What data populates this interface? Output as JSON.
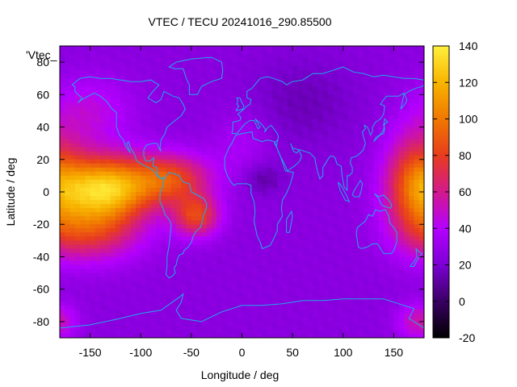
{
  "chart_data": {
    "type": "heatmap",
    "title": "VTEC / TECU 20241016_290.85500",
    "xlabel": "Longitude / deg",
    "ylabel": "Latitude / deg",
    "xlim": [
      -180,
      180
    ],
    "ylim": [
      -90,
      90
    ],
    "x_ticks": [
      -150,
      -100,
      -50,
      0,
      50,
      100,
      150
    ],
    "y_ticks": [
      -80,
      -60,
      -40,
      -20,
      0,
      20,
      40,
      60,
      80
    ],
    "colorbar": {
      "range": [
        -20,
        140
      ],
      "ticks": [
        -20,
        0,
        20,
        40,
        60,
        80,
        100,
        120,
        140
      ],
      "palette": [
        "#000000",
        "#3a0064",
        "#7c00d4",
        "#b400ff",
        "#d21a8c",
        "#e83c1e",
        "#f07800",
        "#f8b400",
        "#fff03c"
      ]
    },
    "legend_key": "'Vtec_",
    "overlay": "coastlines",
    "coastline_color": "#20a8e8",
    "field_description": {
      "background_vtec": 25,
      "equatorial_anomaly_peak": {
        "lon": -140,
        "lat": -5,
        "vtec": 125
      },
      "secondary_peak": {
        "lon": 170,
        "lat": -5,
        "vtec": 85
      },
      "south_atlantic_peak": {
        "lon": -50,
        "lat": -15,
        "vtec": 80
      },
      "night_minimum": {
        "lon": 20,
        "lat": 10,
        "vtec": 12
      }
    }
  }
}
